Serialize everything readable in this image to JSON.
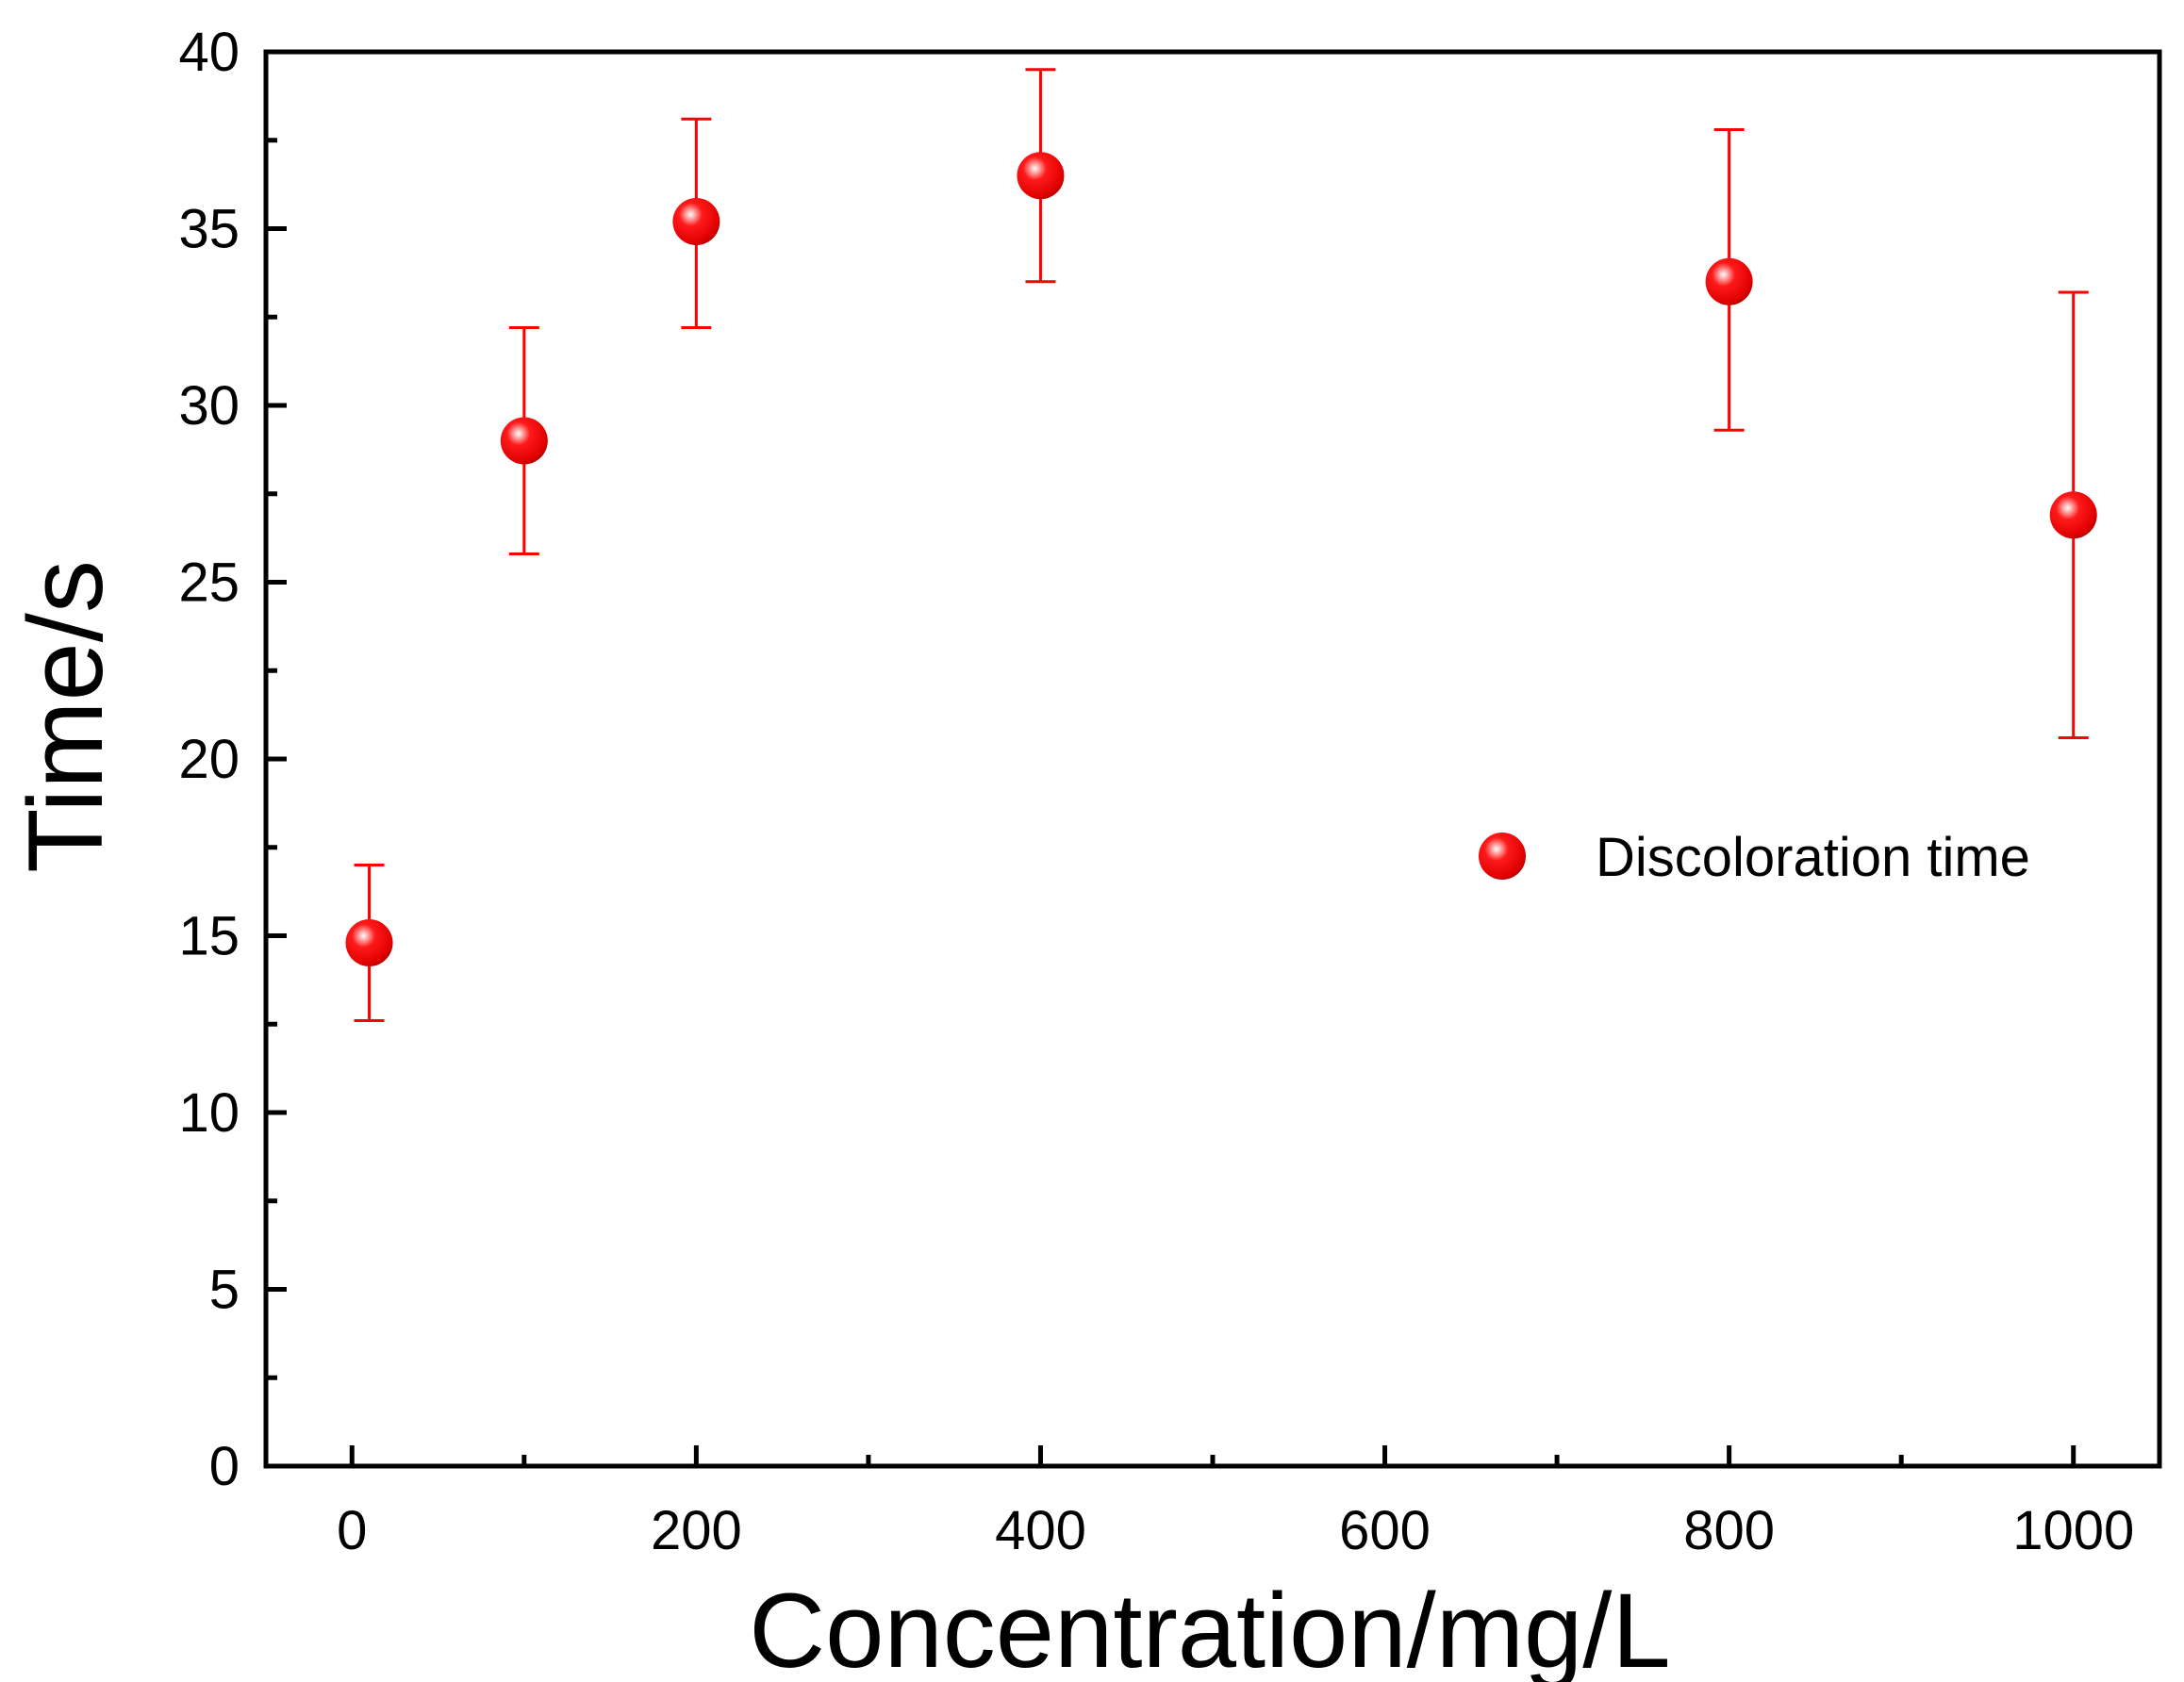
{
  "chart_data": {
    "type": "scatter",
    "title": "",
    "xlabel": "Concentration/mg/L",
    "ylabel": "Time/s",
    "xlim": [
      -50,
      1050
    ],
    "ylim": [
      0,
      40
    ],
    "x_major_ticks": [
      0,
      200,
      400,
      600,
      800,
      1000
    ],
    "x_major_labels": [
      "0",
      "200",
      "400",
      "600",
      "800",
      "1000"
    ],
    "x_minor_ticks": [
      100,
      300,
      500,
      700,
      900
    ],
    "y_major_ticks": [
      0,
      5,
      10,
      15,
      20,
      25,
      30,
      35,
      40
    ],
    "y_major_labels": [
      "0",
      "5",
      "10",
      "15",
      "20",
      "25",
      "30",
      "35",
      "40"
    ],
    "y_minor_ticks": [
      2.5,
      7.5,
      12.5,
      17.5,
      22.5,
      27.5,
      32.5,
      37.5
    ],
    "grid": false,
    "legend_position": "right-middle",
    "series": [
      {
        "name": "Discoloration time",
        "color": "#ff0000",
        "marker": "sphere",
        "points": [
          {
            "x": 10,
            "y": 14.8,
            "err_low": 12.6,
            "err_high": 17.0
          },
          {
            "x": 100,
            "y": 29.0,
            "err_low": 25.8,
            "err_high": 32.2
          },
          {
            "x": 200,
            "y": 35.2,
            "err_low": 32.2,
            "err_high": 38.1
          },
          {
            "x": 400,
            "y": 36.5,
            "err_low": 33.5,
            "err_high": 39.5
          },
          {
            "x": 800,
            "y": 33.5,
            "err_low": 29.3,
            "err_high": 37.8
          },
          {
            "x": 1000,
            "y": 26.9,
            "err_low": 20.6,
            "err_high": 33.2
          }
        ]
      }
    ]
  }
}
